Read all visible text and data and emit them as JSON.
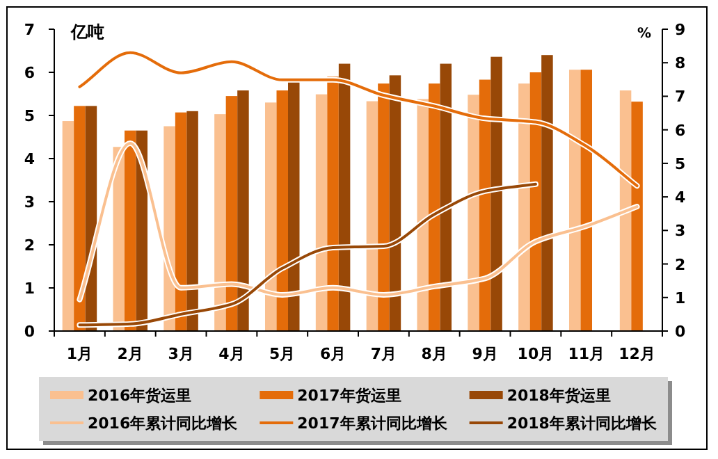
{
  "chart_data": {
    "type": "bar",
    "categories": [
      "1月",
      "2月",
      "3月",
      "4月",
      "5月",
      "6月",
      "7月",
      "8月",
      "9月",
      "10月",
      "11月",
      "12月"
    ],
    "ylabel": "亿吨",
    "y2label": "%",
    "ylim": [
      0,
      7
    ],
    "yticks": [
      0,
      1,
      2,
      3,
      4,
      5,
      6,
      7
    ],
    "y2lim": [
      0,
      9
    ],
    "y2ticks": [
      0,
      1,
      2,
      3,
      4,
      5,
      6,
      7,
      8,
      9
    ],
    "legend": "bottom",
    "series": [
      {
        "name": "2016年货运里",
        "color": "#fac090",
        "values": [
          4.87,
          4.27,
          4.75,
          5.03,
          5.3,
          5.49,
          5.33,
          5.38,
          5.48,
          5.74,
          6.06,
          5.58
        ]
      },
      {
        "name": "2017年货运里",
        "color": "#e46c0a",
        "values": [
          5.22,
          4.65,
          5.07,
          5.45,
          5.58,
          5.9,
          5.74,
          5.74,
          5.83,
          6.0,
          6.06,
          5.32
        ]
      },
      {
        "name": "2018年货运里",
        "color": "#984807",
        "values": [
          5.22,
          4.65,
          5.1,
          5.58,
          5.87,
          6.2,
          5.93,
          6.2,
          6.36,
          6.4,
          null,
          null
        ]
      },
      {
        "name": "2016年累计同比增长",
        "type": "line",
        "axis": "y2",
        "color": "#fac090",
        "values": [
          0.94,
          5.6,
          1.29,
          1.4,
          1.08,
          1.29,
          1.08,
          1.33,
          1.57,
          2.67,
          3.13,
          3.71
        ]
      },
      {
        "name": "2017年累计同比增长",
        "type": "line",
        "axis": "y2",
        "color": "#e46c0a",
        "values": [
          7.28,
          8.3,
          7.7,
          8.03,
          7.49,
          7.49,
          7.03,
          6.71,
          6.34,
          6.23,
          5.51,
          4.33
        ]
      },
      {
        "name": "2018年累计同比增长",
        "type": "line",
        "axis": "y2",
        "color": "#984807",
        "values": [
          0.18,
          0.21,
          0.5,
          0.8,
          1.87,
          2.49,
          2.53,
          3.48,
          4.17,
          4.38,
          null,
          null
        ]
      }
    ]
  }
}
